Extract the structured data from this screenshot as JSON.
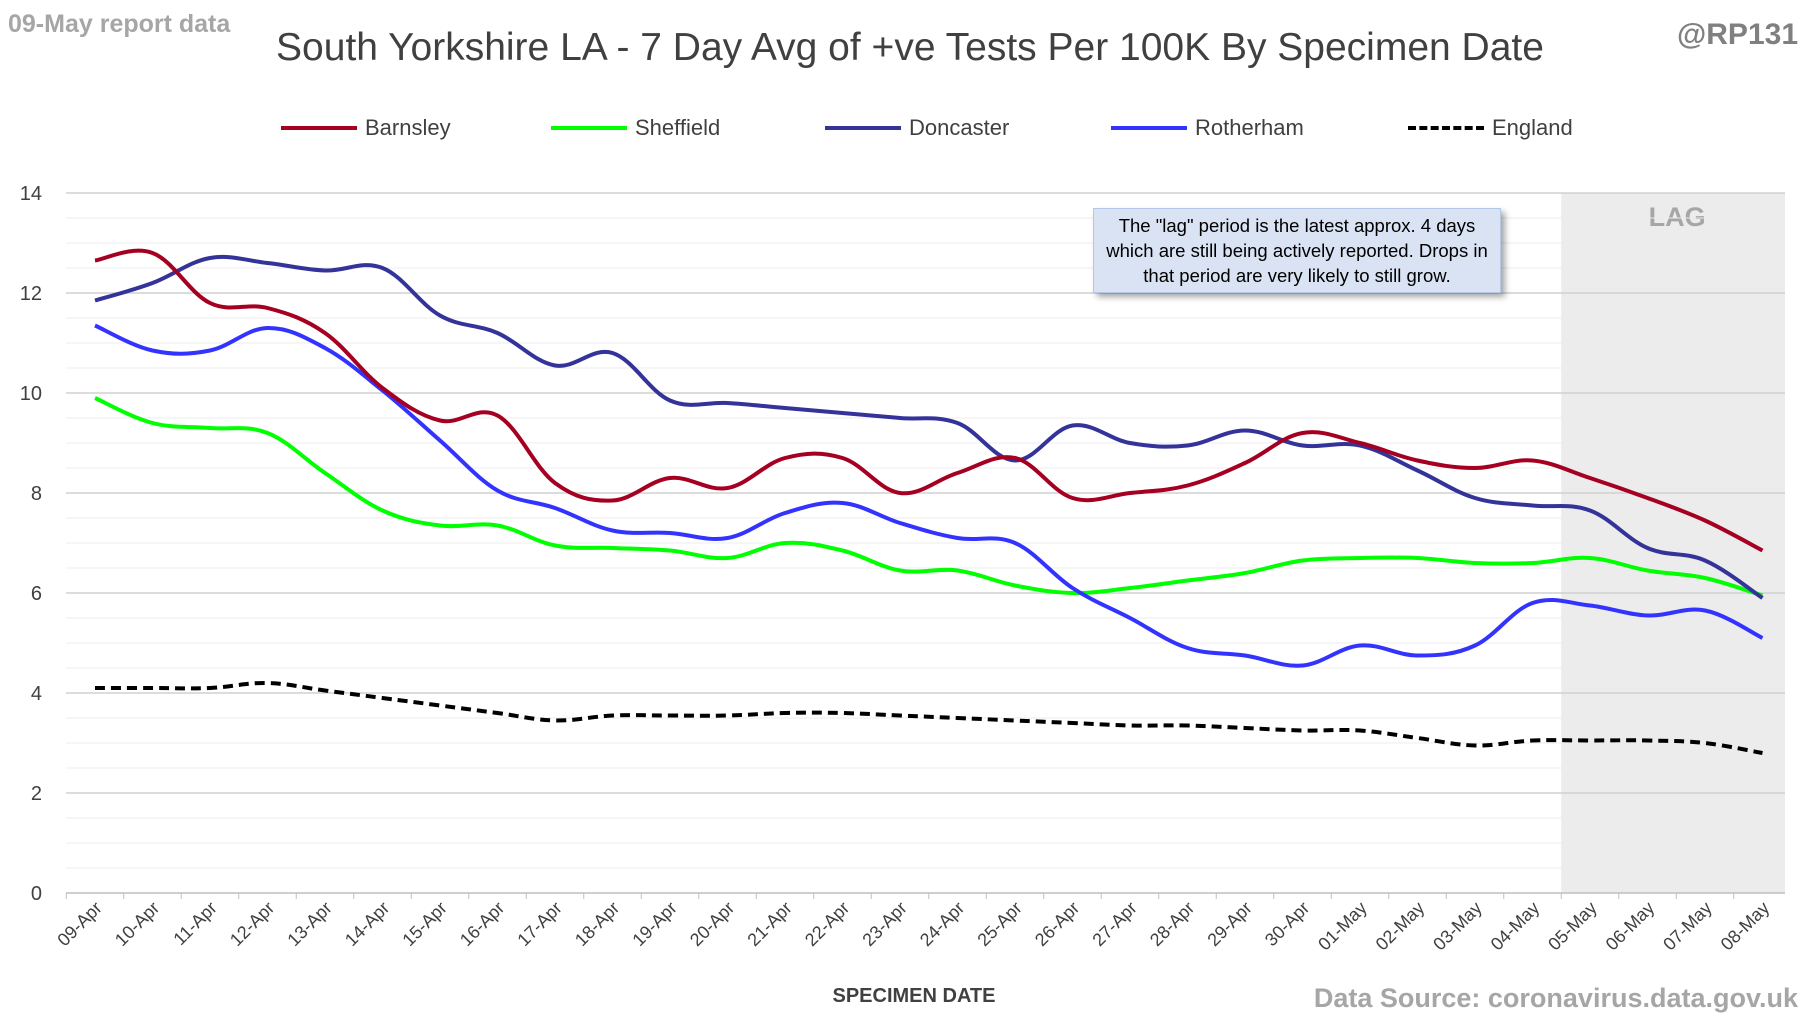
{
  "header": {
    "report_tag": "09-May report data",
    "handle": "@RP131",
    "source": "Data Source: coronavirus.data.gov.uk"
  },
  "note": "The \"lag\" period is the latest approx. 4 days which are still being actively reported. Drops in that period are very likely to still grow.",
  "lag_label": "LAG",
  "colors": {
    "barnsley": "#a50021",
    "sheffield": "#00ff00",
    "doncaster": "#333399",
    "rotherham": "#3333ff",
    "england": "#000000",
    "lag_shade": "#ececec",
    "grid": "#d9d9d9"
  },
  "chart_data": {
    "type": "line",
    "title": "South Yorkshire LA - 7 Day Avg of +ve Tests Per 100K By Specimen Date",
    "xlabel": "SPECIMEN DATE",
    "ylabel": "",
    "ylim": [
      0,
      14
    ],
    "yticks": [
      0,
      2,
      4,
      6,
      8,
      10,
      12,
      14
    ],
    "grid": true,
    "legend_position": "top",
    "lag_period": [
      "05-May",
      "08-May"
    ],
    "x": [
      "09-Apr",
      "10-Apr",
      "11-Apr",
      "12-Apr",
      "13-Apr",
      "14-Apr",
      "15-Apr",
      "16-Apr",
      "17-Apr",
      "18-Apr",
      "19-Apr",
      "20-Apr",
      "21-Apr",
      "22-Apr",
      "23-Apr",
      "24-Apr",
      "25-Apr",
      "26-Apr",
      "27-Apr",
      "28-Apr",
      "29-Apr",
      "30-Apr",
      "01-May",
      "02-May",
      "03-May",
      "04-May",
      "05-May",
      "06-May",
      "07-May",
      "08-May"
    ],
    "series": [
      {
        "name": "Barnsley",
        "style": "solid",
        "values": [
          12.65,
          12.8,
          11.8,
          11.7,
          11.2,
          10.1,
          9.45,
          9.55,
          8.2,
          7.85,
          8.3,
          8.1,
          8.7,
          8.7,
          8.0,
          8.4,
          8.7,
          7.9,
          8.0,
          8.15,
          8.6,
          9.2,
          9.0,
          8.65,
          8.5,
          8.65,
          8.3,
          7.9,
          7.45,
          6.85
        ]
      },
      {
        "name": "Sheffield",
        "style": "solid",
        "values": [
          9.9,
          9.4,
          9.3,
          9.2,
          8.4,
          7.65,
          7.35,
          7.35,
          6.95,
          6.9,
          6.85,
          6.7,
          7.0,
          6.85,
          6.45,
          6.45,
          6.15,
          6.0,
          6.1,
          6.25,
          6.4,
          6.65,
          6.7,
          6.7,
          6.6,
          6.6,
          6.7,
          6.45,
          6.3,
          5.95
        ]
      },
      {
        "name": "Doncaster",
        "style": "solid",
        "values": [
          11.85,
          12.2,
          12.7,
          12.6,
          12.45,
          12.5,
          11.55,
          11.2,
          10.55,
          10.8,
          9.85,
          9.8,
          9.7,
          9.6,
          9.5,
          9.4,
          8.65,
          9.35,
          9.0,
          8.95,
          9.25,
          8.95,
          8.95,
          8.45,
          7.9,
          7.75,
          7.65,
          6.9,
          6.65,
          5.9
        ]
      },
      {
        "name": "Rotherham",
        "style": "solid",
        "values": [
          11.35,
          10.85,
          10.85,
          11.3,
          10.9,
          10.05,
          9.05,
          8.05,
          7.7,
          7.25,
          7.2,
          7.1,
          7.6,
          7.8,
          7.4,
          7.1,
          7.0,
          6.1,
          5.5,
          4.9,
          4.75,
          4.55,
          4.95,
          4.75,
          4.95,
          5.8,
          5.75,
          5.55,
          5.65,
          5.1
        ]
      },
      {
        "name": "England",
        "style": "dashed",
        "values": [
          4.1,
          4.1,
          4.1,
          4.2,
          4.05,
          3.9,
          3.75,
          3.6,
          3.45,
          3.55,
          3.55,
          3.55,
          3.6,
          3.6,
          3.55,
          3.5,
          3.45,
          3.4,
          3.35,
          3.35,
          3.3,
          3.25,
          3.25,
          3.1,
          2.95,
          3.05,
          3.05,
          3.05,
          3.0,
          2.8
        ]
      }
    ]
  }
}
